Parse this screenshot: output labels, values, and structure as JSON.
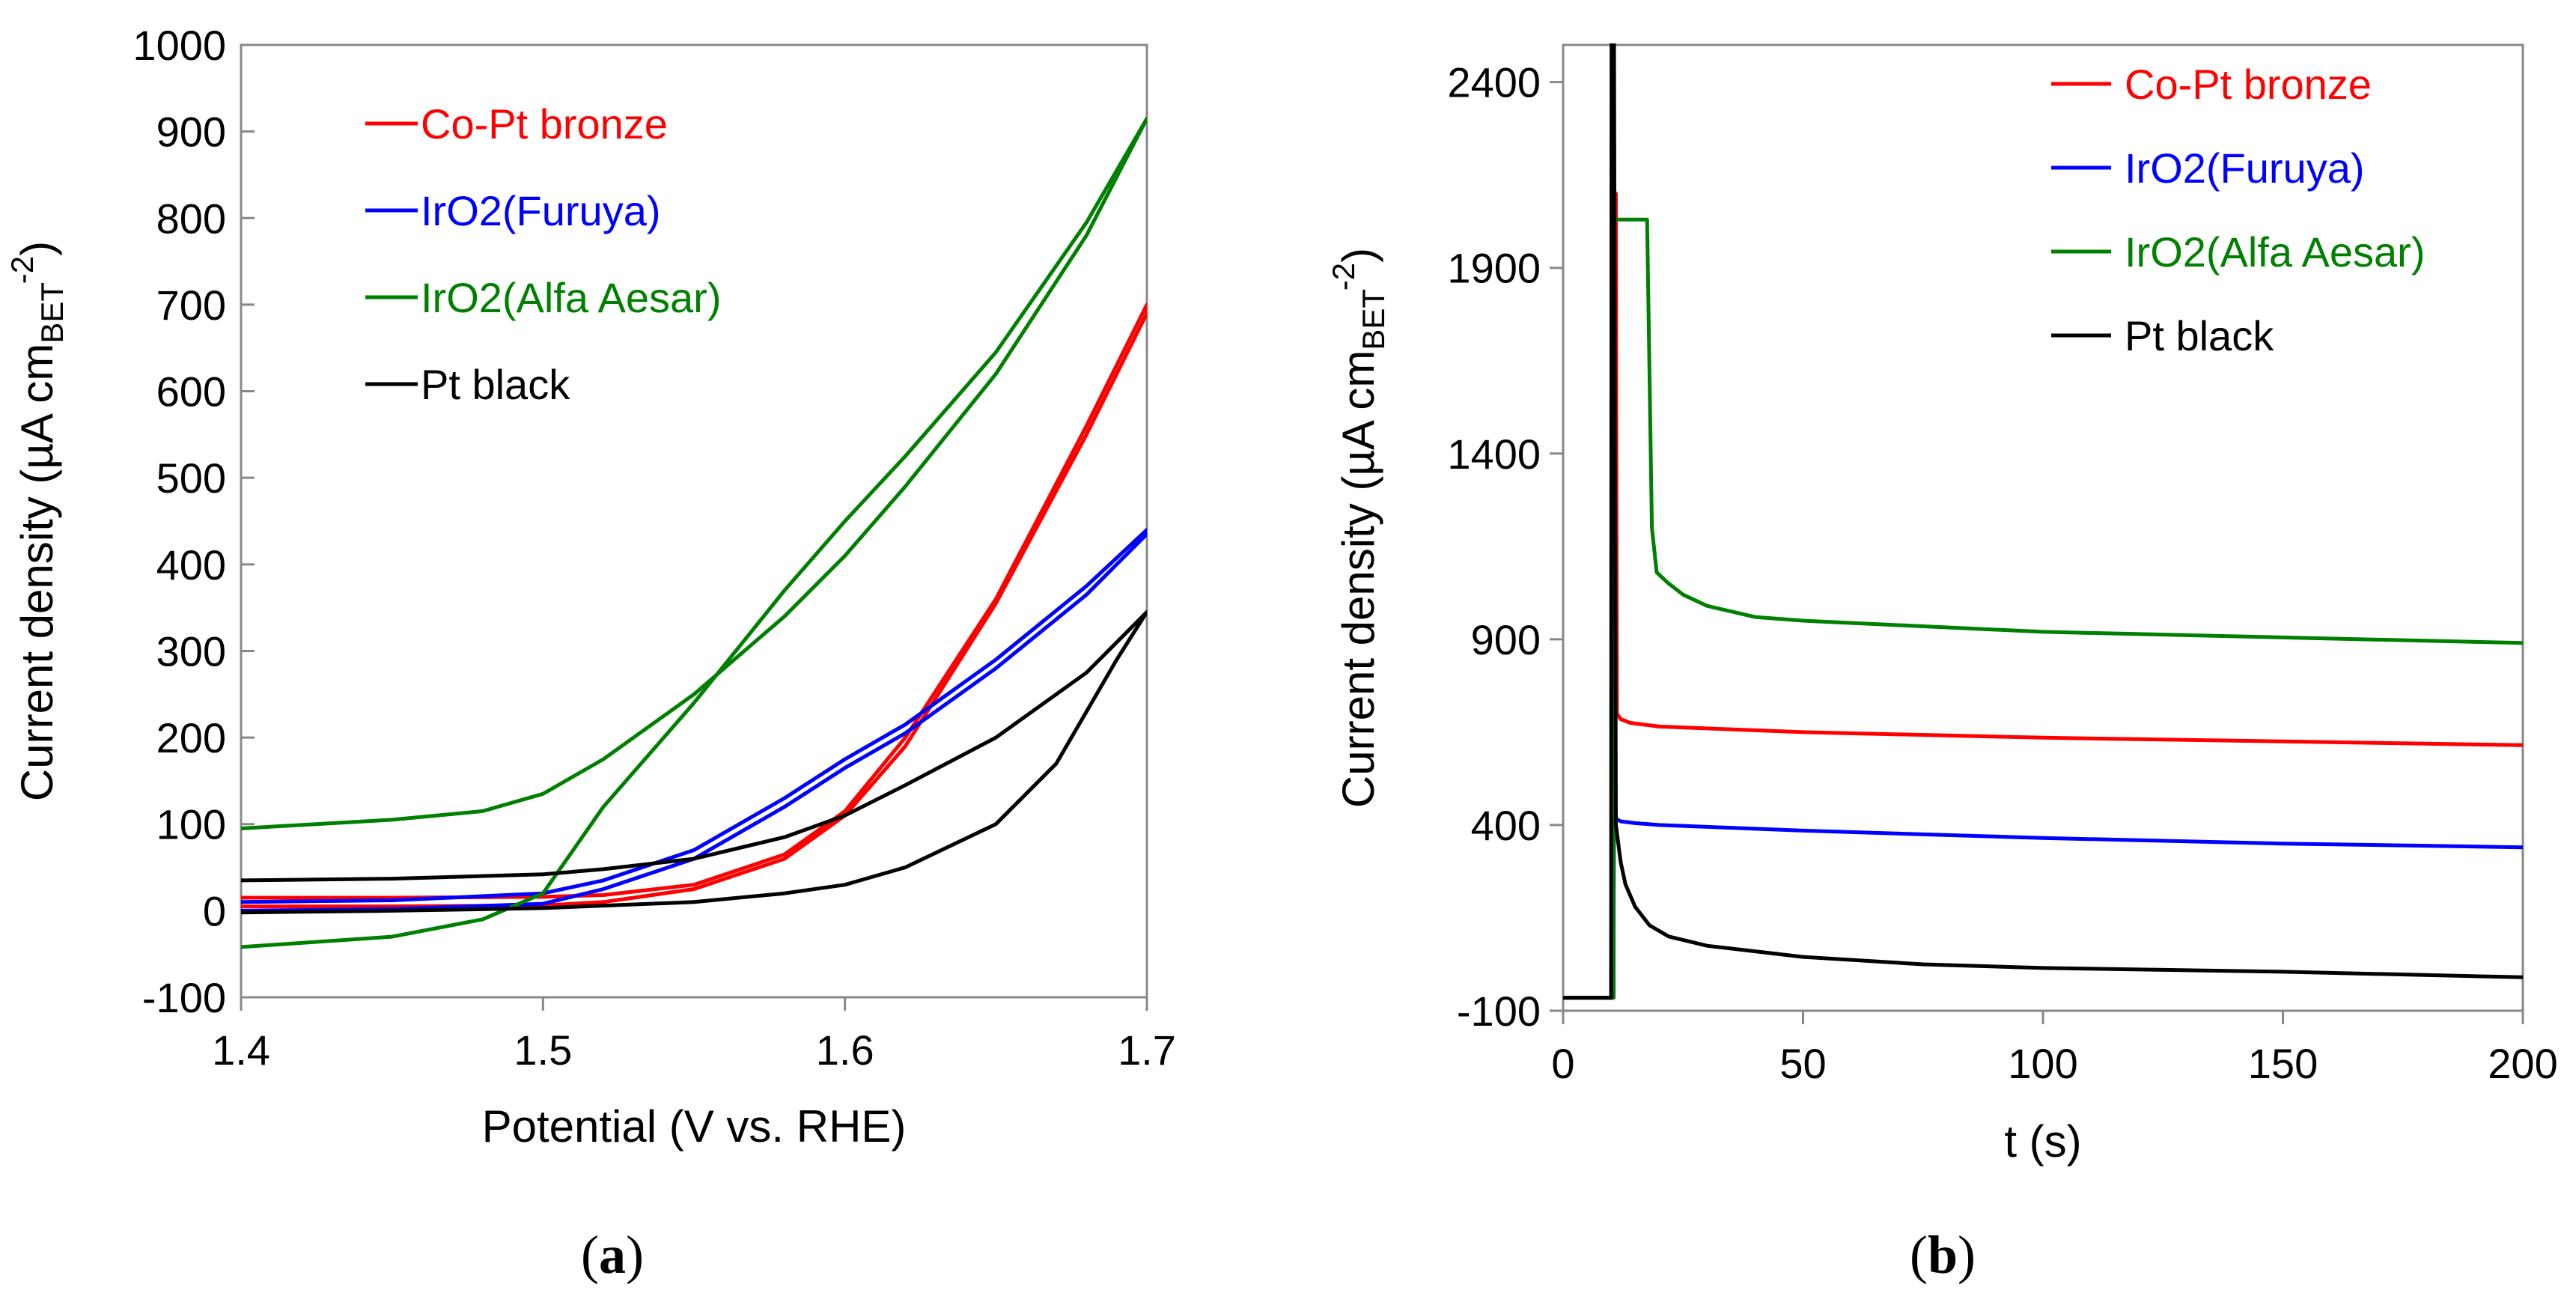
{
  "panels": [
    {
      "label": "(a)",
      "letter": "a"
    },
    {
      "label": "(b)",
      "letter": "b"
    }
  ],
  "chart_data": [
    {
      "type": "line",
      "panel": "a",
      "xlabel": "Potential (V vs. RHE)",
      "ylabel_prefix": "Current density (µA cm",
      "ylabel_sub": "BET",
      "ylabel_sup": "-2",
      "ylabel_suffix": ")",
      "xlim": [
        1.4,
        1.7
      ],
      "ylim": [
        -100,
        1000
      ],
      "xticks": [
        "1.4",
        "1.5",
        "1.6",
        "1.7"
      ],
      "yticks": [
        "-100",
        "0",
        "100",
        "200",
        "300",
        "400",
        "500",
        "600",
        "700",
        "800",
        "900",
        "1000"
      ],
      "grid": false,
      "legend_position": "top-left",
      "series": [
        {
          "name": "Co-Pt bronze",
          "color": "#ff0000",
          "x": [
            1.4,
            1.45,
            1.5,
            1.52,
            1.55,
            1.58,
            1.6,
            1.62,
            1.65,
            1.68,
            1.7,
            1.7,
            1.68,
            1.65,
            1.62,
            1.6,
            1.58,
            1.55,
            1.52,
            1.5,
            1.45,
            1.4
          ],
          "y": [
            15,
            15,
            16,
            18,
            30,
            65,
            115,
            200,
            360,
            560,
            700,
            690,
            550,
            355,
            190,
            110,
            60,
            25,
            10,
            6,
            5,
            5
          ]
        },
        {
          "name": "IrO2(Furuya)",
          "color": "#0000ff",
          "x": [
            1.4,
            1.45,
            1.5,
            1.52,
            1.55,
            1.58,
            1.6,
            1.62,
            1.65,
            1.68,
            1.7,
            1.7,
            1.68,
            1.65,
            1.62,
            1.6,
            1.58,
            1.55,
            1.52,
            1.5,
            1.45,
            1.4
          ],
          "y": [
            10,
            12,
            20,
            35,
            70,
            130,
            175,
            215,
            290,
            375,
            440,
            435,
            365,
            280,
            205,
            165,
            120,
            60,
            25,
            8,
            2,
            0
          ]
        },
        {
          "name": "IrO2(Alfa Aesar)",
          "color": "#008000",
          "x": [
            1.4,
            1.45,
            1.48,
            1.5,
            1.52,
            1.55,
            1.58,
            1.6,
            1.62,
            1.65,
            1.68,
            1.7,
            1.7,
            1.68,
            1.65,
            1.62,
            1.6,
            1.58,
            1.55,
            1.52,
            1.5,
            1.48,
            1.45,
            1.4
          ],
          "y": [
            95,
            105,
            115,
            135,
            175,
            250,
            340,
            410,
            490,
            620,
            780,
            915,
            915,
            795,
            645,
            525,
            450,
            370,
            240,
            120,
            20,
            -10,
            -30,
            -42
          ]
        },
        {
          "name": "Pt black",
          "color": "#000000",
          "x": [
            1.4,
            1.45,
            1.5,
            1.52,
            1.55,
            1.58,
            1.6,
            1.62,
            1.65,
            1.68,
            1.7,
            1.69,
            1.67,
            1.65,
            1.62,
            1.6,
            1.58,
            1.55,
            1.5,
            1.45,
            1.4
          ],
          "y": [
            35,
            37,
            42,
            48,
            60,
            85,
            110,
            145,
            200,
            275,
            345,
            290,
            170,
            100,
            50,
            30,
            20,
            10,
            3,
            0,
            -2
          ]
        }
      ]
    },
    {
      "type": "line",
      "panel": "b",
      "xlabel": "t (s)",
      "ylabel_prefix": "Current density (µA cm",
      "ylabel_sub": "BET",
      "ylabel_sup": "-2",
      "ylabel_suffix": ")",
      "xlim": [
        0,
        200
      ],
      "ylim": [
        -100,
        2500
      ],
      "xticks": [
        "0",
        "50",
        "100",
        "150",
        "200"
      ],
      "yticks": [
        "-100",
        "400",
        "900",
        "1400",
        "1900",
        "2400"
      ],
      "grid": false,
      "legend_position": "top-right",
      "series": [
        {
          "name": "Co-Pt bronze",
          "color": "#ff0000",
          "x": [
            0,
            10.5,
            10.6,
            11,
            11.2,
            12,
            14,
            20,
            30,
            50,
            100,
            150,
            200
          ],
          "y": [
            -65,
            -65,
            2100,
            2100,
            700,
            685,
            675,
            665,
            660,
            650,
            635,
            625,
            615
          ]
        },
        {
          "name": "IrO2(Furuya)",
          "color": "#0000ff",
          "x": [
            0,
            10.5,
            10.6,
            12,
            15,
            20,
            30,
            50,
            100,
            150,
            200
          ],
          "y": [
            -65,
            -65,
            420,
            410,
            405,
            400,
            395,
            385,
            365,
            350,
            340
          ]
        },
        {
          "name": "IrO2(Alfa Aesar)",
          "color": "#008000",
          "x": [
            0,
            10.5,
            10.6,
            12,
            17.5,
            18.5,
            19.5,
            22,
            25,
            30,
            40,
            50,
            75,
            100,
            150,
            200
          ],
          "y": [
            -65,
            -65,
            2030,
            2030,
            2030,
            1200,
            1080,
            1050,
            1020,
            990,
            960,
            950,
            935,
            920,
            905,
            890
          ]
        },
        {
          "name": "Pt black",
          "color": "#000000",
          "x": [
            0,
            10,
            10.1,
            10.6,
            11,
            12,
            13,
            15,
            18,
            22,
            30,
            40,
            50,
            75,
            100,
            150,
            200
          ],
          "y": [
            -65,
            -65,
            2600,
            2600,
            400,
            300,
            240,
            180,
            130,
            100,
            75,
            60,
            45,
            25,
            15,
            5,
            -10
          ]
        }
      ]
    }
  ]
}
